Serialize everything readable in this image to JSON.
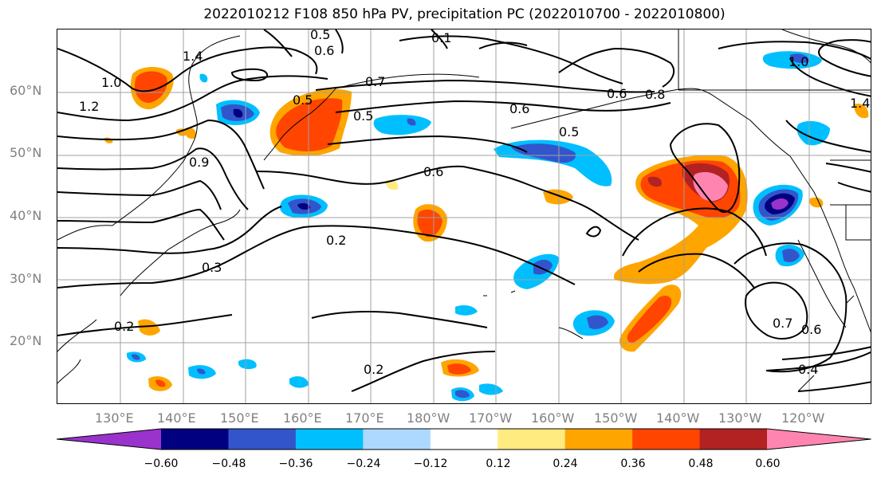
{
  "title": "2022010212 F108 850 hPa PV, precipitation PC (2022010700 - 2022010800)",
  "map": {
    "lat_labels": [
      "60°N",
      "50°N",
      "40°N",
      "30°N",
      "20°N"
    ],
    "lon_labels": [
      "130°E",
      "140°E",
      "150°E",
      "160°E",
      "170°E",
      "180°W",
      "170°W",
      "160°W",
      "150°W",
      "140°W",
      "130°W",
      "120°W"
    ],
    "contour_labels": [
      "0.5",
      "0.6",
      "0.1",
      "1.4",
      "1.0",
      "1.2",
      "0.7",
      "0.5",
      "0.6",
      "0.5",
      "0.5",
      "0.6",
      "0.8",
      "0.6",
      "1.0",
      "1.4",
      "0.2",
      "0.3",
      "0.2",
      "0.2",
      "0.4",
      "0.7",
      "0.6",
      "0.9"
    ]
  },
  "colorbar": {
    "colors": [
      "#9933cc",
      "#000080",
      "#3355cc",
      "#00bfff",
      "#add8ff",
      "#ffffff",
      "#ffeb80",
      "#ffa500",
      "#ff4500",
      "#b22222",
      "#ff85b0"
    ],
    "tick_labels": [
      "−0.60",
      "−0.48",
      "−0.36",
      "−0.24",
      "−0.12",
      "0.12",
      "0.24",
      "0.36",
      "0.48",
      "0.60"
    ]
  }
}
